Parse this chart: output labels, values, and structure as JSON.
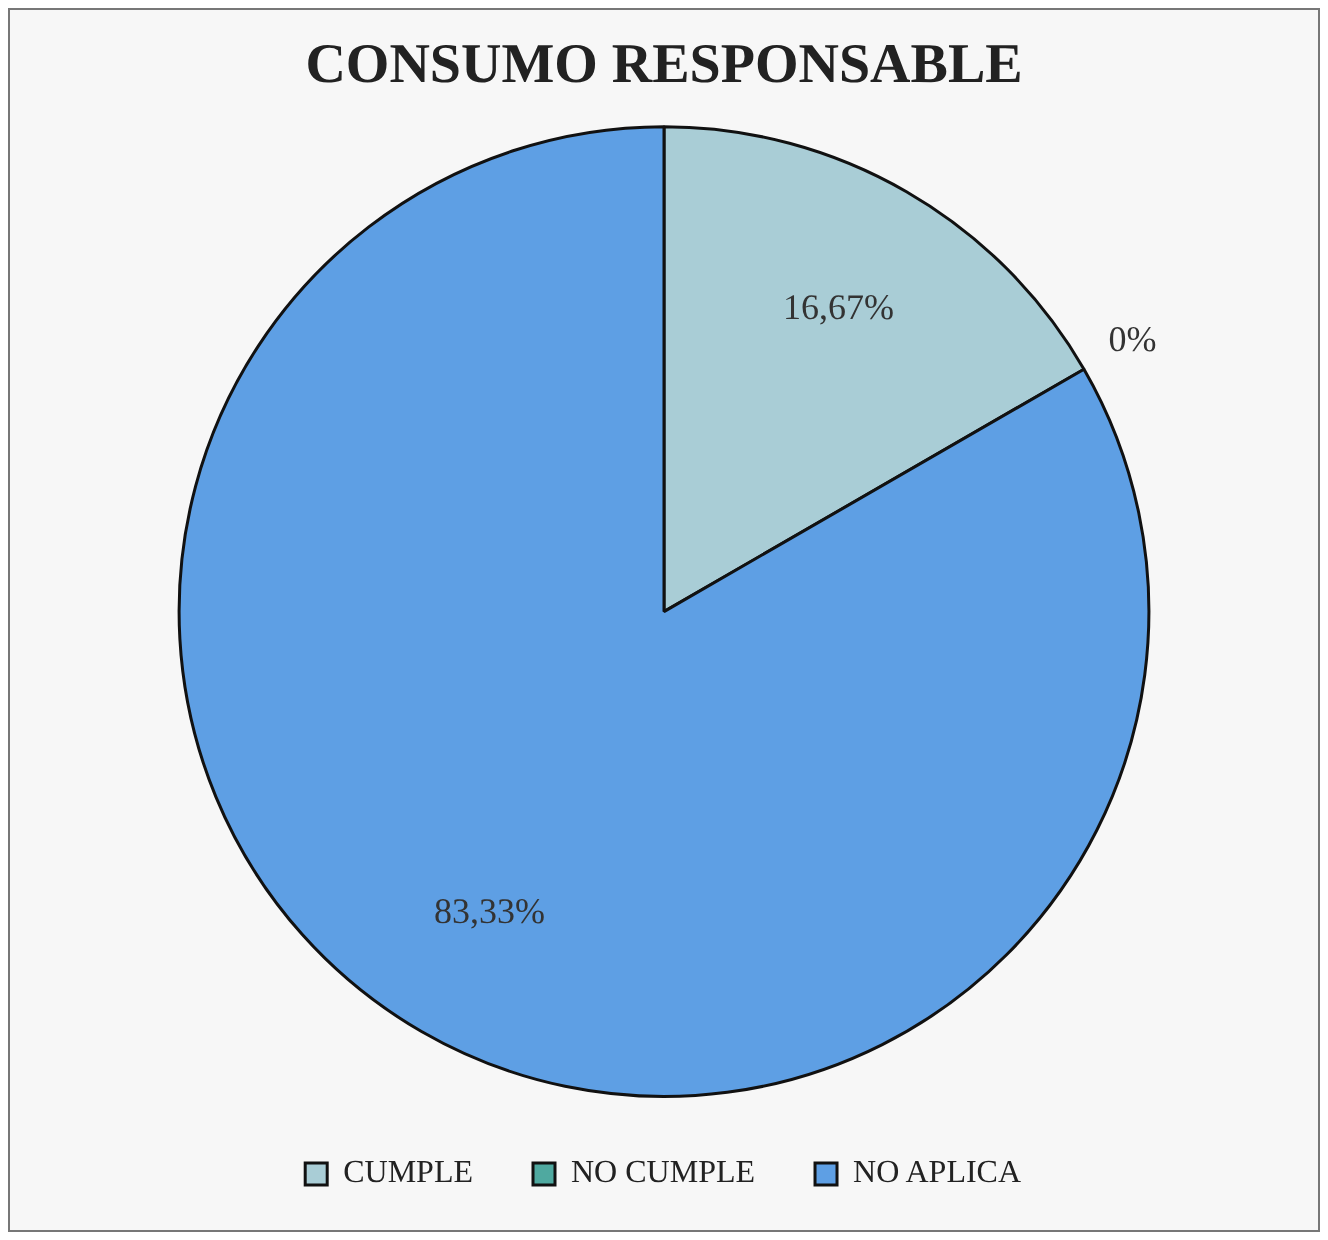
{
  "chart_data": {
    "type": "pie",
    "title": "CONSUMO RESPONSABLE",
    "categories": [
      "CUMPLE",
      "NO CUMPLE",
      "NO APLICA"
    ],
    "values": [
      16.67,
      0,
      83.33
    ],
    "value_labels": [
      "16,67%",
      "0%",
      "83,33%"
    ],
    "colors": [
      "#a9cdd6",
      "#4fa9a0",
      "#5e9fe4"
    ],
    "legend": "bottom"
  }
}
